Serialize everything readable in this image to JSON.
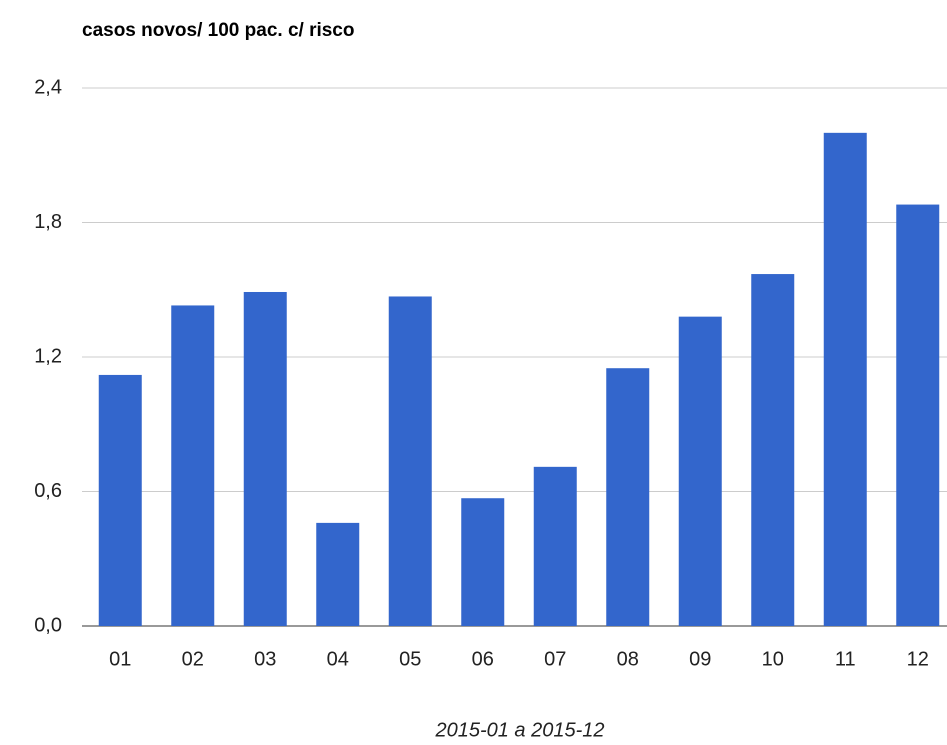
{
  "chart_data": {
    "type": "bar",
    "title": "casos novos/ 100 pac. c/ risco",
    "x_label": "2015-01 a 2015-12",
    "categories": [
      "01",
      "02",
      "03",
      "04",
      "05",
      "06",
      "07",
      "08",
      "09",
      "10",
      "11",
      "12"
    ],
    "values": [
      1.12,
      1.43,
      1.49,
      0.46,
      1.47,
      0.57,
      0.71,
      1.15,
      1.38,
      1.57,
      2.2,
      1.88
    ],
    "color": "#3366cc",
    "ylim": [
      0,
      2.4
    ],
    "yticks": [
      {
        "value": 0,
        "label": "0,0"
      },
      {
        "value": 0.6,
        "label": "0,6"
      },
      {
        "value": 1.2,
        "label": "1,2"
      },
      {
        "value": 1.8,
        "label": "1,8"
      },
      {
        "value": 2.4,
        "label": "2,4"
      }
    ],
    "grid": true
  }
}
